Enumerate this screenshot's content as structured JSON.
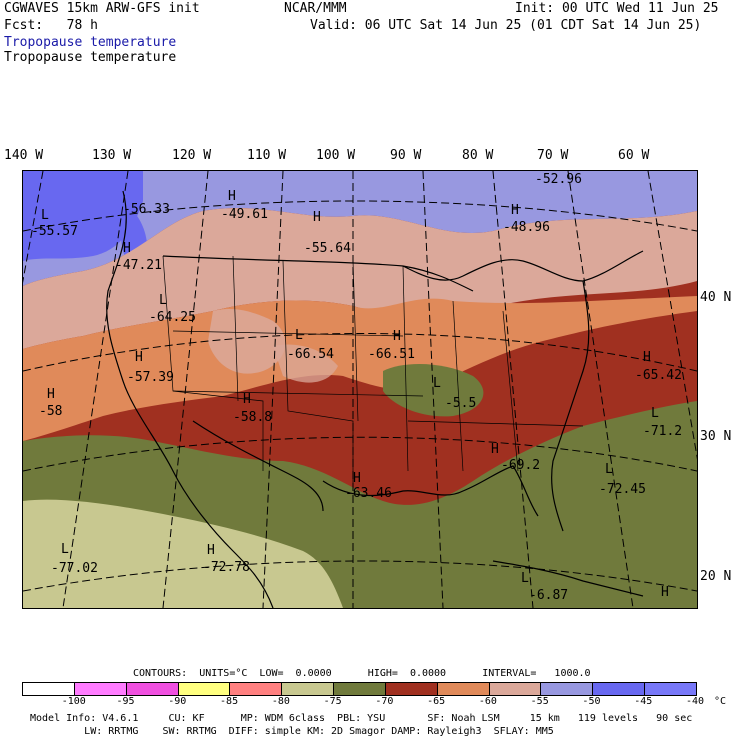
{
  "header": {
    "model": "CGWAVES 15km ARW-GFS init",
    "org": "NCAR/MMM",
    "init": "Init: 00 UTC Wed 11 Jun 25",
    "fcst": "Fcst:   78 h",
    "valid": "Valid: 06 UTC Sat 14 Jun 25 (01 CDT Sat 14 Jun 25)",
    "field_blue": "Tropopause temperature",
    "field_black": "Tropopause temperature"
  },
  "lon_labels": [
    "140 W",
    "130 W",
    "120 W",
    "110 W",
    "100 W",
    "90 W",
    "80 W",
    "70 W",
    "60 W"
  ],
  "lat_labels": [
    "40 N",
    "30 N",
    "20 N"
  ],
  "extrema": [
    {
      "kind": "L",
      "value": "-55.57"
    },
    {
      "kind": "",
      "value": "-56.33"
    },
    {
      "kind": "H",
      "value": "-49.61"
    },
    {
      "kind": "H",
      "value": "-47.21"
    },
    {
      "kind": "H",
      "value": "-55.64"
    },
    {
      "kind": "",
      "value": "-52.96"
    },
    {
      "kind": "H",
      "value": "-48.96"
    },
    {
      "kind": "L",
      "value": "-64.25"
    },
    {
      "kind": "L",
      "value": "-66.54"
    },
    {
      "kind": "H",
      "value": "-66.51"
    },
    {
      "kind": "H",
      "value": "-57.39"
    },
    {
      "kind": "H",
      "value": "-58"
    },
    {
      "kind": "H",
      "value": "-58.8"
    },
    {
      "kind": "L",
      "value": "-5.5"
    },
    {
      "kind": "H",
      "value": "-65.42"
    },
    {
      "kind": "L",
      "value": "-71.2"
    },
    {
      "kind": "H",
      "value": "-69.2"
    },
    {
      "kind": "L",
      "value": "-72.45"
    },
    {
      "kind": "H",
      "value": "-63.46"
    },
    {
      "kind": "L",
      "value": "-77.02"
    },
    {
      "kind": "H",
      "value": "-72.78"
    },
    {
      "kind": "L",
      "value": "-6.87"
    },
    {
      "kind": "H",
      "value": ""
    }
  ],
  "contours_line": "CONTOURS:  UNITS=°C  LOW=  0.0000      HIGH=  0.0000      INTERVAL=   1000.0",
  "colorbar": {
    "colors": [
      "#ffffff",
      "#ff7cff",
      "#f050e0",
      "#ffff80",
      "#ff8080",
      "#c8c890",
      "#707a3c",
      "#a03020",
      "#e08a5a",
      "#dba89a",
      "#9898e0",
      "#6868f0",
      "#7878f8"
    ],
    "ticks": [
      "-100",
      "-95",
      "-90",
      "-85",
      "-80",
      "-75",
      "-70",
      "-65",
      "-60",
      "-55",
      "-50",
      "-45",
      "-40",
      "°C"
    ]
  },
  "footer": {
    "line1": "Model Info: V4.6.1     CU: KF      MP: WDM 6class  PBL: YSU       SF: Noah LSM     15 km   119 levels   90 sec",
    "line2": "         LW: RRTMG    SW: RRTMG  DIFF: simple KM: 2D Smagor DAMP: Rayleigh3  SFLAY: MM5"
  }
}
